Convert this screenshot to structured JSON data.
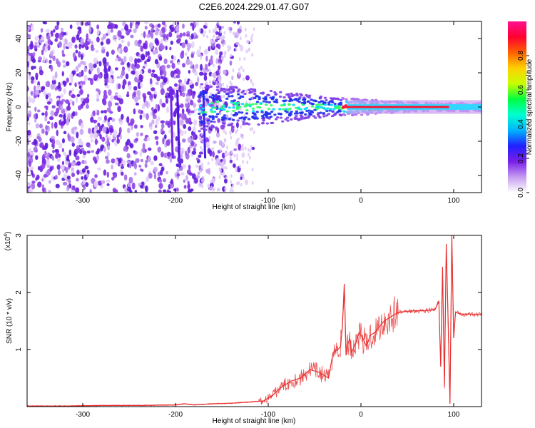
{
  "title": "C2E6.2024.229.01.47.G07",
  "chart_data": [
    {
      "type": "heatmap",
      "xlabel": "Height of straight line (km)",
      "ylabel": "Frequency (Hz)",
      "xlim": [
        -360,
        130
      ],
      "ylim": [
        -50,
        50
      ],
      "xticks": [
        -300,
        -200,
        -100,
        0,
        100
      ],
      "yticks": [
        -40,
        -20,
        0,
        20,
        40
      ],
      "colorbar": {
        "label": "Normalized spectral amplitude",
        "range": [
          0,
          1
        ],
        "ticks": [
          "0.0",
          "0.2",
          "0.4",
          "0.6",
          "0.8"
        ],
        "colors": [
          "#ffffff",
          "#c59cf0",
          "#7a1ee8",
          "#2020ff",
          "#00b4ff",
          "#00ffd0",
          "#00ff40",
          "#c8ff00",
          "#ffd000",
          "#ff6000",
          "#ff0030",
          "#ff1090"
        ]
      }
    },
    {
      "type": "line",
      "xlabel": "Height of straight line (km)",
      "ylabel": "SNR (10 * v/v)",
      "yscale_note": "(x10",
      "yscale_exp": "4",
      "xlim": [
        -360,
        130
      ],
      "ylim": [
        0,
        3
      ],
      "xticks": [
        -300,
        -200,
        -100,
        0,
        100
      ],
      "yticks": [
        1,
        2,
        3
      ],
      "line_color": "#e83030",
      "series": [
        {
          "x": [
            -360,
            -320,
            -280,
            -240,
            -200,
            -190,
            -180,
            -160,
            -140,
            -120,
            -105,
            -95,
            -85,
            -75,
            -65,
            -55,
            -45,
            -40,
            -35,
            -30,
            -25,
            -22,
            -20,
            -18,
            -16,
            -14,
            -12,
            -10,
            -6,
            -2,
            2,
            6,
            10,
            15,
            20,
            25,
            30,
            35,
            40,
            50,
            60,
            70,
            80,
            84,
            86,
            88,
            90,
            92,
            94,
            96,
            98,
            100,
            102,
            106,
            110,
            120,
            130
          ],
          "y": [
            0.01,
            0.01,
            0.02,
            0.02,
            0.03,
            0.05,
            0.03,
            0.05,
            0.06,
            0.08,
            0.1,
            0.2,
            0.35,
            0.45,
            0.5,
            0.65,
            0.6,
            0.55,
            0.5,
            0.95,
            1.0,
            1.05,
            1.4,
            2.15,
            0.9,
            1.1,
            1.2,
            0.95,
            1.1,
            1.3,
            1.2,
            1.05,
            1.25,
            1.3,
            1.4,
            1.5,
            1.55,
            1.6,
            1.65,
            1.67,
            1.68,
            1.68,
            1.7,
            1.85,
            0.7,
            2.45,
            0.35,
            2.85,
            1.5,
            0.05,
            3.0,
            1.2,
            1.65,
            1.63,
            1.62,
            1.62,
            1.61
          ]
        }
      ]
    }
  ]
}
